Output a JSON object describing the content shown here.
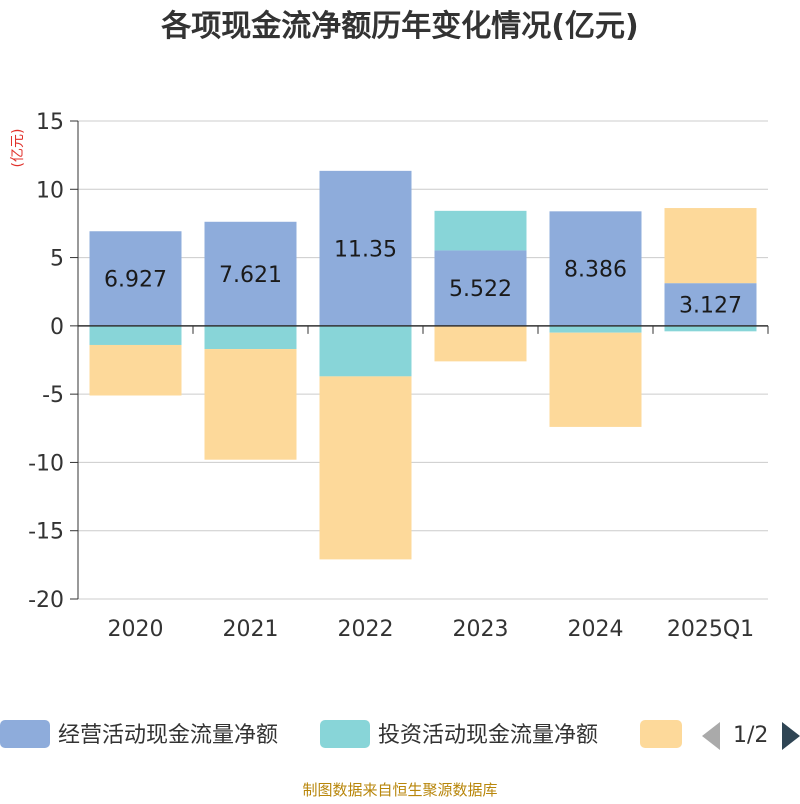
{
  "chart_data": {
    "type": "bar",
    "stacked": true,
    "title": "各项现金流净额历年变化情况(亿元)",
    "ylabel": "(亿元)",
    "xlabel": "",
    "ylim": [
      -20,
      15
    ],
    "yticks": [
      15,
      10,
      5,
      0,
      -5,
      -10,
      -15,
      -20
    ],
    "grid": true,
    "legend_position": "bottom",
    "categories": [
      "2020",
      "2021",
      "2022",
      "2023",
      "2024",
      "2025Q1"
    ],
    "series": [
      {
        "name": "经营活动现金流量净额",
        "color": "#8eacdb",
        "values": [
          6.927,
          7.621,
          11.35,
          5.522,
          8.386,
          3.127
        ],
        "labels": [
          "6.927",
          "7.621",
          "11.35",
          "5.522",
          "8.386",
          "3.127"
        ]
      },
      {
        "name": "投资活动现金流量净额",
        "color": "#88d5d8",
        "values": [
          -1.4,
          -1.7,
          -3.7,
          2.9,
          -0.5,
          -0.4
        ]
      },
      {
        "name": "",
        "color": "#fdd99a",
        "values": [
          -3.7,
          -8.1,
          -13.4,
          -2.6,
          -6.9,
          5.5
        ]
      }
    ]
  },
  "legend": {
    "page_indicator": "1/2"
  },
  "source_note": "制图数据来自恒生聚源数据库"
}
